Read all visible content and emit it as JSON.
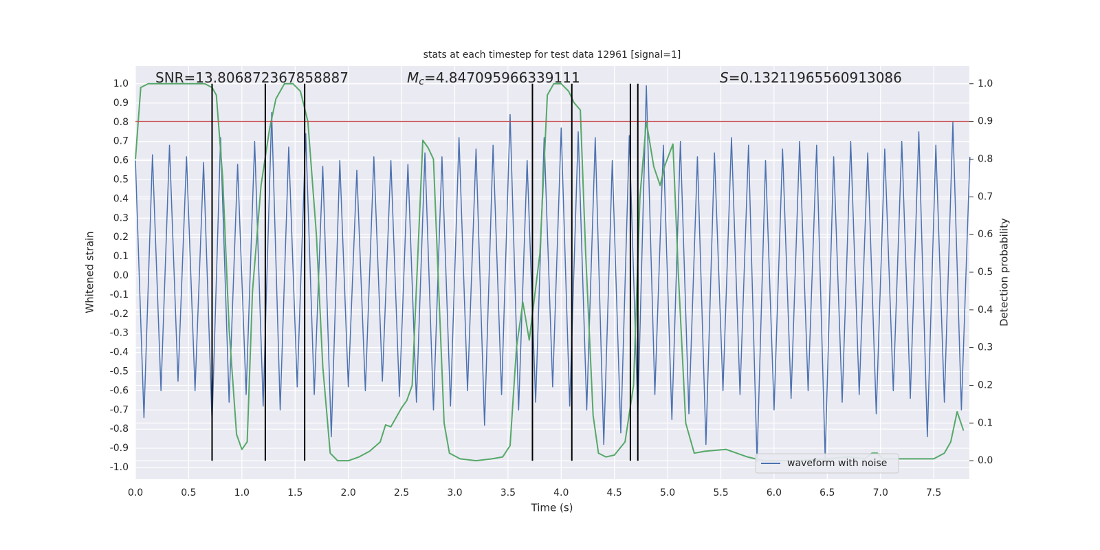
{
  "chart_data": {
    "type": "line",
    "title": "stats at each timestep for test data 12961 [signal=1]",
    "xlabel": "Time (s)",
    "ylabel": "Whitened strain",
    "y2label": "Detection probability",
    "annotations": [
      {
        "text": "SNR=13.806872367858887"
      },
      {
        "symbol": "M",
        "subscript": "c",
        "text": "=4.847095966339111"
      },
      {
        "symbol": "S",
        "text": "=0.13211965560913086"
      }
    ],
    "xlim": [
      0,
      7.835
    ],
    "xticks": [
      {
        "value": 0,
        "label": "0.0"
      },
      0.5,
      {
        "value": 1,
        "label": "1.0"
      },
      1.5,
      {
        "value": 2,
        "label": "2.0"
      },
      2.5,
      {
        "value": 3,
        "label": "3.0"
      },
      3.5,
      {
        "value": 4,
        "label": "4.0"
      },
      4.5,
      {
        "value": 5,
        "label": "5.0"
      },
      5.5,
      {
        "value": 6,
        "label": "6.0"
      },
      6.5,
      {
        "value": 7,
        "label": "7.0"
      },
      7.5
    ],
    "ylim": [
      -1.061,
      1.093
    ],
    "yticks": [
      {
        "value": -1,
        "label": "-1.0"
      },
      -0.9,
      -0.8,
      -0.7,
      -0.6,
      -0.5,
      -0.4,
      -0.3,
      -0.2,
      -0.1,
      {
        "value": 0,
        "label": "0.0"
      },
      0.1,
      0.2,
      0.3,
      0.4,
      0.5,
      0.6,
      0.7,
      0.8,
      0.9,
      {
        "value": 1,
        "label": "1.0"
      }
    ],
    "y2lim": [
      -0.049,
      1.047
    ],
    "y2ticks": [
      {
        "value": 0,
        "label": "0.0"
      },
      0.1,
      0.2,
      0.3,
      0.4,
      0.5,
      0.6,
      0.7,
      0.8,
      0.9,
      {
        "value": 1,
        "label": "1.0"
      }
    ],
    "grid": true,
    "legend": "lower right",
    "series": [
      {
        "name": "waveform with noise",
        "color": "#4c72b0",
        "x": [
          0,
          0.08,
          0.16,
          0.24,
          0.32,
          0.4,
          0.48,
          0.56,
          0.64,
          0.72,
          0.8,
          0.88,
          0.96,
          1.04,
          1.12,
          1.2,
          1.28,
          1.36,
          1.44,
          1.52,
          1.6,
          1.68,
          1.76,
          1.84,
          1.92,
          2,
          2.08,
          2.16,
          2.24,
          2.32,
          2.4,
          2.48,
          2.56,
          2.64,
          2.72,
          2.8,
          2.88,
          2.96,
          3.04,
          3.12,
          3.2,
          3.28,
          3.36,
          3.44,
          3.52,
          3.6,
          3.68,
          3.76,
          3.84,
          3.92,
          4,
          4.08,
          4.16,
          4.24,
          4.32,
          4.4,
          4.48,
          4.56,
          4.64,
          4.72,
          4.8,
          4.88,
          4.96,
          5.04,
          5.12,
          5.2,
          5.28,
          5.36,
          5.44,
          5.52,
          5.6,
          5.68,
          5.76,
          5.84,
          5.92,
          6,
          6.08,
          6.16,
          6.24,
          6.32,
          6.4,
          6.48,
          6.56,
          6.64,
          6.72,
          6.8,
          6.88,
          6.96,
          7.04,
          7.12,
          7.2,
          7.28,
          7.36,
          7.44,
          7.52,
          7.6,
          7.68,
          7.76,
          7.84
        ],
        "values": [
          0.6,
          -0.74,
          0.63,
          -0.6,
          0.68,
          -0.55,
          0.62,
          -0.6,
          0.59,
          -0.77,
          0.72,
          -0.66,
          0.58,
          -0.62,
          0.7,
          -0.68,
          0.85,
          -0.7,
          0.67,
          -0.58,
          0.74,
          -0.62,
          0.57,
          -0.84,
          0.6,
          -0.58,
          0.55,
          -0.6,
          0.62,
          -0.55,
          0.6,
          -0.63,
          0.58,
          -0.66,
          0.64,
          -0.7,
          0.62,
          -0.68,
          0.72,
          -0.6,
          0.66,
          -0.78,
          0.68,
          -0.62,
          0.84,
          -0.7,
          0.6,
          -0.66,
          0.72,
          -0.58,
          0.77,
          -0.68,
          0.75,
          -0.7,
          0.72,
          -0.88,
          0.6,
          -0.82,
          0.73,
          -0.72,
          0.99,
          -0.62,
          0.68,
          -0.75,
          0.7,
          -0.72,
          0.62,
          -0.88,
          0.64,
          -0.6,
          0.72,
          -0.62,
          0.68,
          -0.97,
          0.6,
          -0.7,
          0.66,
          -0.64,
          0.7,
          -0.6,
          0.68,
          -0.95,
          0.62,
          -0.66,
          0.7,
          -0.62,
          0.64,
          -0.72,
          0.66,
          -0.6,
          0.7,
          -0.64,
          0.75,
          -0.84,
          0.68,
          -0.66,
          0.8,
          -0.7,
          0.62
        ]
      },
      {
        "color": "#55a868",
        "axis": "y2",
        "x": [
          0,
          0.05,
          0.12,
          0.65,
          0.72,
          0.76,
          0.82,
          0.88,
          0.95,
          1.0,
          1.05,
          1.1,
          1.18,
          1.26,
          1.32,
          1.4,
          1.48,
          1.55,
          1.62,
          1.7,
          1.76,
          1.83,
          1.9,
          2.0,
          2.1,
          2.2,
          2.3,
          2.35,
          2.4,
          2.5,
          2.55,
          2.6,
          2.7,
          2.75,
          2.8,
          2.9,
          2.95,
          3.05,
          3.2,
          3.35,
          3.45,
          3.52,
          3.58,
          3.64,
          3.7,
          3.8,
          3.87,
          3.93,
          4.0,
          4.07,
          4.12,
          4.18,
          4.23,
          4.3,
          4.35,
          4.42,
          4.5,
          4.6,
          4.68,
          4.74,
          4.8,
          4.87,
          4.93,
          4.97,
          5.05,
          5.1,
          5.17,
          5.25,
          5.35,
          5.55,
          5.75,
          5.9,
          6.2,
          6.5,
          6.7,
          6.85,
          6.92,
          6.97,
          7.02,
          7.3,
          7.5,
          7.6,
          7.66,
          7.72,
          7.78
        ],
        "values": [
          0.8,
          0.99,
          1.0,
          1.0,
          0.99,
          0.97,
          0.75,
          0.35,
          0.07,
          0.03,
          0.05,
          0.45,
          0.73,
          0.88,
          0.96,
          1.0,
          1.0,
          0.98,
          0.9,
          0.6,
          0.25,
          0.02,
          0.0,
          0.0,
          0.01,
          0.025,
          0.05,
          0.095,
          0.09,
          0.14,
          0.16,
          0.2,
          0.85,
          0.83,
          0.8,
          0.1,
          0.02,
          0.005,
          0.0,
          0.005,
          0.01,
          0.04,
          0.3,
          0.42,
          0.32,
          0.55,
          0.97,
          1.0,
          1.0,
          0.98,
          0.95,
          0.93,
          0.55,
          0.12,
          0.02,
          0.01,
          0.015,
          0.05,
          0.2,
          0.7,
          0.9,
          0.78,
          0.73,
          0.78,
          0.84,
          0.5,
          0.1,
          0.02,
          0.025,
          0.03,
          0.01,
          0.0,
          0.0,
          0.005,
          0.01,
          0.005,
          0.02,
          0.02,
          0.005,
          0.005,
          0.005,
          0.02,
          0.05,
          0.13,
          0.08
        ]
      }
    ],
    "hlines": [
      {
        "y": 0.9,
        "axis": "y2",
        "color": "#c44e52"
      }
    ],
    "vlines": {
      "x": [
        0.72,
        1.22,
        1.59,
        3.73,
        4.1,
        4.65,
        4.72
      ],
      "span": [
        0,
        1
      ],
      "axis": "y2",
      "color": "#000000"
    }
  }
}
